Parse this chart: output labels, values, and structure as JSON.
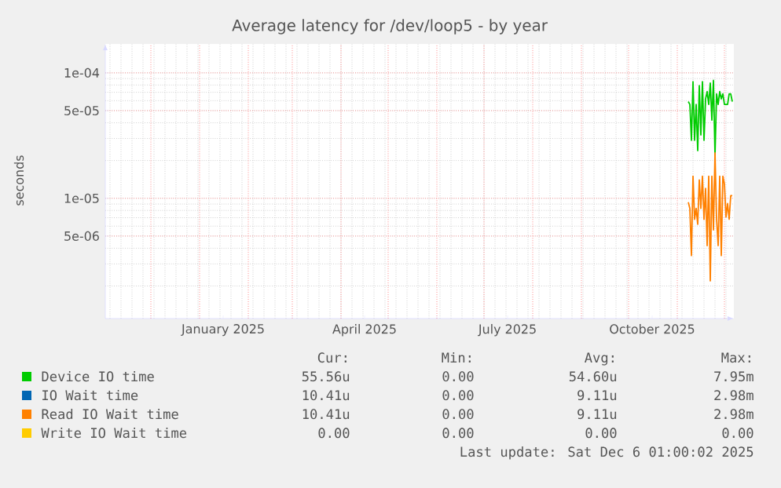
{
  "chart_data": {
    "type": "line",
    "title": "Average latency for /dev/loop5 - by year",
    "ylabel": "seconds",
    "log": "y",
    "grid": true,
    "legend": "bottom",
    "line_style": "solid",
    "x": [
      "2025-11-08",
      "2025-11-09",
      "2025-11-10",
      "2025-11-11",
      "2025-11-12",
      "2025-11-13",
      "2025-11-14",
      "2025-11-15",
      "2025-11-16",
      "2025-11-17",
      "2025-11-18",
      "2025-11-19",
      "2025-11-20",
      "2025-11-21",
      "2025-11-22",
      "2025-11-23",
      "2025-11-24",
      "2025-11-25",
      "2025-11-26",
      "2025-11-27",
      "2025-11-28",
      "2025-11-29",
      "2025-11-30",
      "2025-12-01",
      "2025-12-02",
      "2025-12-03",
      "2025-12-04",
      "2025-12-05",
      "2025-12-06"
    ],
    "xlim": [
      "2024-11-02",
      "2025-12-07"
    ],
    "xticks": [
      {
        "value": "2024-12-01",
        "label": null
      },
      {
        "value": "2025-01-01",
        "label": null
      },
      {
        "value": "2025-01-16",
        "label": "January 2025"
      },
      {
        "value": "2025-02-01",
        "label": null
      },
      {
        "value": "2025-03-01",
        "label": null
      },
      {
        "value": "2025-04-01",
        "label": null
      },
      {
        "value": "2025-04-16",
        "label": "April 2025"
      },
      {
        "value": "2025-05-01",
        "label": null
      },
      {
        "value": "2025-06-01",
        "label": null
      },
      {
        "value": "2025-07-01",
        "label": null
      },
      {
        "value": "2025-07-16",
        "label": "July 2025"
      },
      {
        "value": "2025-08-01",
        "label": null
      },
      {
        "value": "2025-09-01",
        "label": null
      },
      {
        "value": "2025-10-01",
        "label": null
      },
      {
        "value": "2025-10-16",
        "label": "October 2025"
      },
      {
        "value": "2025-11-01",
        "label": null
      },
      {
        "value": "2025-12-01",
        "label": null
      }
    ],
    "ylim": [
      1.1e-06,
      0.00017
    ],
    "yticks": [
      {
        "value": 5e-06,
        "label": "5e-06"
      },
      {
        "value": 1e-05,
        "label": "1e-05"
      },
      {
        "value": 5e-05,
        "label": "5e-05"
      },
      {
        "value": 0.0001,
        "label": "1e-04"
      }
    ],
    "series": [
      {
        "name": "Device IO time",
        "color": "#00cc00",
        "values": [
          5.9e-05,
          5.6e-05,
          2.9e-05,
          8.5e-05,
          2.9e-05,
          5.6e-05,
          2.4e-05,
          7.9e-05,
          3.2e-05,
          8.5e-05,
          2.9e-05,
          6.2e-05,
          7.1e-05,
          5.6e-05,
          8.3e-05,
          4.2e-05,
          8.7e-05,
          2.2e-05,
          6.8e-05,
          5.6e-05,
          7.1e-05,
          6.2e-05,
          6.8e-05,
          5.6e-05,
          5.6e-05,
          5.6e-05,
          6.8e-05,
          6.8e-05,
          5.9e-05
        ]
      },
      {
        "name": "IO Wait time",
        "color": "#0066b3",
        "values": [
          null,
          null,
          null,
          null,
          null,
          null,
          null,
          null,
          null,
          null,
          null,
          null,
          null,
          null,
          null,
          null,
          null,
          null,
          null,
          null,
          null,
          null,
          null,
          null,
          null,
          null,
          null,
          null,
          null
        ]
      },
      {
        "name": "Read IO Wait time",
        "color": "#ff8000",
        "values": [
          9.3e-06,
          8.3e-06,
          3.5e-06,
          1.5e-05,
          6.8e-06,
          8.3e-06,
          6.2e-06,
          1.4e-05,
          8.3e-06,
          1.5e-05,
          6.8e-06,
          1.2e-05,
          4.2e-06,
          1.5e-05,
          2.2e-06,
          1.5e-05,
          5.6e-06,
          2.3e-05,
          6.8e-06,
          4.2e-06,
          1.5e-05,
          3.5e-06,
          1.5e-05,
          1.3e-05,
          7.1e-06,
          9.1e-06,
          6.8e-06,
          1.05e-05,
          1.05e-05
        ]
      },
      {
        "name": "Write IO Wait time",
        "color": "#ffcc00",
        "values": [
          null,
          null,
          null,
          null,
          null,
          null,
          null,
          null,
          null,
          null,
          null,
          null,
          null,
          null,
          null,
          null,
          null,
          null,
          null,
          null,
          null,
          null,
          null,
          null,
          null,
          null,
          null,
          null,
          null
        ]
      }
    ],
    "annotations": [
      "Cur:",
      "Min:",
      "Avg:",
      "Max:",
      "55.56u",
      "0.00",
      "54.60u",
      "7.95m",
      "10.41u",
      "0.00",
      "9.11u",
      "2.98m",
      "10.41u",
      "0.00",
      "9.11u",
      "2.98m",
      "0.00",
      "0.00",
      "0.00",
      "0.00",
      "Last update: Sat Dec  6 01:00:02 2025"
    ]
  }
}
